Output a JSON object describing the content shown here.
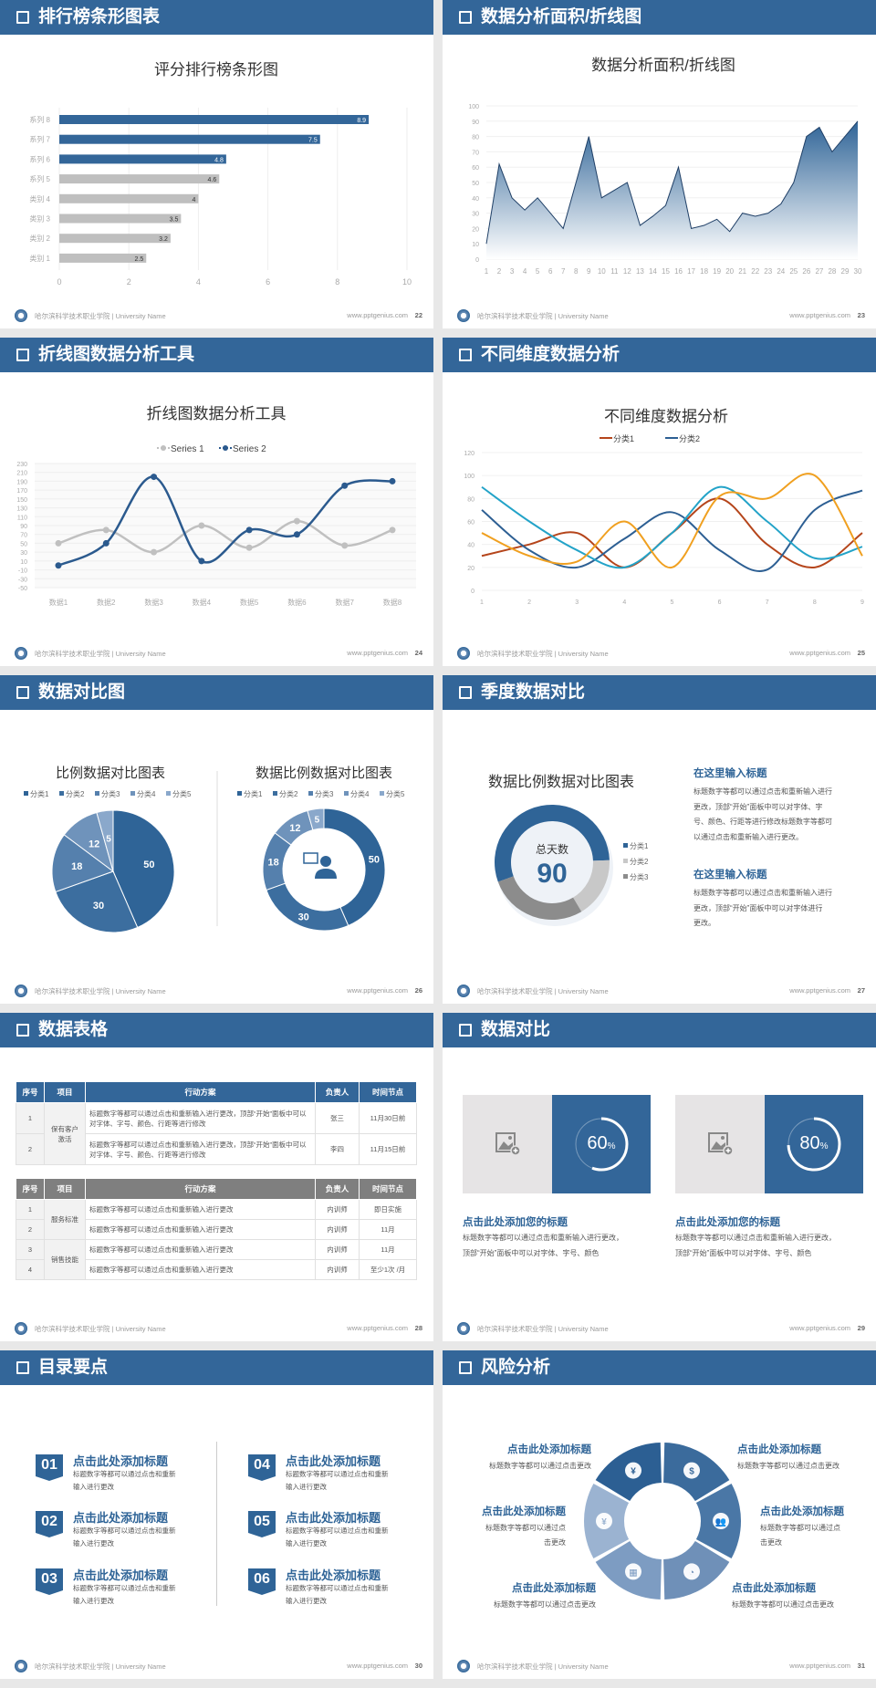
{
  "footer": {
    "school": "哈尔滨科学技术职业学院 | University Name",
    "url": "www.pptgenius.com",
    "separator": "|"
  },
  "colors": {
    "primary": "#336699",
    "bar_gray": "#bfbfbf",
    "series_gray": "#c0c0c0",
    "series_blue": "#2b5a8e",
    "cat1": "#b5451b",
    "cat2": "#2d5f93",
    "cat3": "#23a3c8",
    "cat4": "#f0a020",
    "pie": [
      "#2f6497",
      "#3c6e9f",
      "#5580ad",
      "#6f93bb",
      "#8aa8cb"
    ],
    "donut3": [
      "#2f6497",
      "#c8c8c8",
      "#8c8c8c"
    ]
  },
  "slides": {
    "bar": {
      "header": "排行榜条形图表",
      "page": "22"
    },
    "area": {
      "header": "数据分析面积/折线图",
      "page": "23"
    },
    "line": {
      "header": "折线图数据分析工具",
      "page": "24"
    },
    "dims": {
      "header": "不同维度数据分析",
      "page": "25"
    },
    "pies": {
      "header": "数据对比图",
      "page": "26"
    },
    "season": {
      "header": "季度数据对比",
      "page": "27",
      "blocks": [
        {
          "title": "在这里输入标题",
          "lines": [
            "标题数字等都可以通过点击和重新输入进行",
            "更改，顶部“开始”面板中可以对字体、字",
            "号、颜色、行距等进行修改标题数字等都可",
            "以通过点击和重新输入进行更改。"
          ]
        },
        {
          "title": "在这里输入标题",
          "lines": [
            "标题数字等都可以通过点击和重新输入进行",
            "更改，顶部“开始”面板中可以对字体进行",
            "更改。"
          ]
        }
      ]
    },
    "table": {
      "header": "数据表格",
      "page": "28",
      "columns": [
        "序号",
        "项目",
        "行动方案",
        "负责人",
        "时间节点"
      ],
      "table1": {
        "group": "保有客户激活",
        "rows": [
          {
            "no": "1",
            "plan": "标题数字等都可以通过点击和重新输入进行更改，顶部“开始”面板中可以对字体、字号、颜色、行距等进行修改",
            "owner": "张三",
            "time": "11月30日前"
          },
          {
            "no": "2",
            "plan": "标题数字等都可以通过点击和重新输入进行更改，顶部“开始”面板中可以对字体、字号、颜色、行距等进行修改",
            "owner": "李四",
            "time": "11月15日前"
          }
        ]
      },
      "table2": {
        "groups": [
          "服务标准",
          "销售技能"
        ],
        "rows": [
          {
            "no": "1",
            "plan": "标题数字等都可以通过点击和重新输入进行更改",
            "owner": "内训师",
            "time": "即日实施"
          },
          {
            "no": "2",
            "plan": "标题数字等都可以通过点击和重新输入进行更改",
            "owner": "内训师",
            "time": "11月"
          },
          {
            "no": "3",
            "plan": "标题数字等都可以通过点击和重新输入进行更改",
            "owner": "内训师",
            "time": "11月"
          },
          {
            "no": "4",
            "plan": "标题数字等都可以通过点击和重新输入进行更改",
            "owner": "内训师",
            "time": "至少1次 /月"
          }
        ]
      }
    },
    "compare": {
      "header": "数据对比",
      "page": "29",
      "cards": [
        {
          "percent": 60,
          "label": "60",
          "unit": "%",
          "title": "点击此处添加您的标题",
          "lines": [
            "标题数字等都可以通过点击和重新输入进行更改，",
            "顶部“开始”面板中可以对字体、字号、颜色"
          ]
        },
        {
          "percent": 80,
          "label": "80",
          "unit": "%",
          "title": "点击此处添加您的标题",
          "lines": [
            "标题数字等都可以通过点击和重新输入进行更改，",
            "顶部“开始”面板中可以对字体、字号、颜色"
          ]
        }
      ]
    },
    "toc": {
      "header": "目录要点",
      "page": "30",
      "items": [
        {
          "num": "01",
          "title": "点击此处添加标题",
          "lines": [
            "标题数字等都可以通过点击和重新",
            "输入进行更改"
          ]
        },
        {
          "num": "02",
          "title": "点击此处添加标题",
          "lines": [
            "标题数字等都可以通过点击和重新",
            "输入进行更改"
          ]
        },
        {
          "num": "03",
          "title": "点击此处添加标题",
          "lines": [
            "标题数字等都可以通过点击和重新",
            "输入进行更改"
          ]
        },
        {
          "num": "04",
          "title": "点击此处添加标题",
          "lines": [
            "标题数字等都可以通过点击和重新",
            "输入进行更改"
          ]
        },
        {
          "num": "05",
          "title": "点击此处添加标题",
          "lines": [
            "标题数字等都可以通过点击和重新",
            "输入进行更改"
          ]
        },
        {
          "num": "06",
          "title": "点击此处添加标题",
          "lines": [
            "标题数字等都可以通过点击和重新",
            "输入进行更改"
          ]
        }
      ]
    },
    "risk": {
      "header": "风险分析",
      "page": "31",
      "icons": [
        "money-bag-icon",
        "coins-icon",
        "people-icon",
        "pie-chart-icon",
        "building-icon",
        "hand-yen-icon"
      ],
      "items": [
        {
          "title": "点击此处添加标题",
          "lines": [
            "标题数字等都可以通过点击更改"
          ]
        },
        {
          "title": "点击此处添加标题",
          "lines": [
            "标题数字等都可以通过点击更改"
          ]
        },
        {
          "title": "点击此处添加标题",
          "lines": [
            "标题数字等都可以通过点",
            "击更改"
          ]
        },
        {
          "title": "点击此处添加标题",
          "lines": [
            "标题数字等都可以通过点",
            "击更改"
          ]
        },
        {
          "title": "点击此处添加标题",
          "lines": [
            "标题数字等都可以通过点击更改"
          ]
        },
        {
          "title": "点击此处添加标题",
          "lines": [
            "标题数字等都可以通过点击更改"
          ]
        }
      ]
    }
  },
  "chart_data": [
    {
      "type": "bar",
      "orientation": "horizontal",
      "title": "评分排行榜条形图",
      "categories": [
        "系列 8",
        "系列 7",
        "系列 6",
        "系列 5",
        "类别 4",
        "类别 3",
        "类别 2",
        "类别 1"
      ],
      "values": [
        8.9,
        7.5,
        4.8,
        4.6,
        4,
        3.5,
        3.2,
        2.5
      ],
      "highlighted": 3,
      "xlim": [
        0,
        10
      ],
      "xticks": [
        0,
        2,
        4,
        6,
        8,
        10
      ],
      "grid": true,
      "data_labels": true
    },
    {
      "type": "area",
      "title": "数据分析面积/折线图",
      "x": [
        1,
        2,
        3,
        4,
        5,
        6,
        7,
        8,
        9,
        10,
        11,
        12,
        13,
        14,
        15,
        16,
        17,
        18,
        19,
        20,
        21,
        22,
        23,
        24,
        25,
        26,
        27,
        28,
        29,
        30
      ],
      "values": [
        10,
        62,
        40,
        32,
        40,
        30,
        20,
        50,
        80,
        40,
        45,
        50,
        22,
        28,
        35,
        60,
        20,
        22,
        26,
        18,
        30,
        28,
        30,
        36,
        50,
        80,
        86,
        70,
        80,
        90
      ],
      "ylim": [
        0,
        100
      ],
      "yticks": [
        0,
        10,
        20,
        30,
        40,
        50,
        60,
        70,
        80,
        90,
        100
      ],
      "grid": true
    },
    {
      "type": "line",
      "title": "折线图数据分析工具",
      "smooth": true,
      "legend": "top",
      "categories": [
        "数据1",
        "数据2",
        "数据3",
        "数据4",
        "数据5",
        "数据6",
        "数据7",
        "数据8"
      ],
      "series": [
        {
          "name": "Series 1",
          "values": [
            50,
            80,
            30,
            90,
            40,
            100,
            45,
            80
          ]
        },
        {
          "name": "Series 2",
          "values": [
            0,
            50,
            200,
            10,
            80,
            70,
            180,
            190
          ]
        }
      ],
      "ylim": [
        -50,
        230
      ],
      "yticks": [
        -50,
        -30,
        -10,
        10,
        30,
        50,
        70,
        90,
        110,
        130,
        150,
        170,
        190,
        210,
        230
      ],
      "grid": true
    },
    {
      "type": "line",
      "title": "不同维度数据分析",
      "smooth": true,
      "legend": "top",
      "x": [
        1,
        2,
        3,
        4,
        5,
        6,
        7,
        8,
        9
      ],
      "series": [
        {
          "name": "分类1",
          "values": [
            30,
            40,
            50,
            20,
            50,
            80,
            40,
            20,
            50
          ]
        },
        {
          "name": "分类2",
          "values": [
            70,
            35,
            20,
            45,
            68,
            35,
            18,
            70,
            87
          ]
        },
        {
          "values": [
            90,
            60,
            35,
            20,
            50,
            90,
            60,
            28,
            38
          ]
        },
        {
          "values": [
            50,
            30,
            25,
            60,
            20,
            82,
            80,
            100,
            30
          ]
        }
      ],
      "ylim": [
        0,
        120
      ],
      "yticks": [
        0,
        20,
        40,
        60,
        80,
        100,
        120
      ],
      "grid": true
    },
    {
      "type": "pie",
      "title": "比例数据对比图表",
      "legend": "top",
      "categories": [
        "分类1",
        "分类2",
        "分类3",
        "分类4",
        "分类5"
      ],
      "values": [
        50,
        30,
        18,
        12,
        5
      ]
    },
    {
      "type": "pie",
      "variant": "donut",
      "title": "数据比例数据对比图表",
      "legend": "top",
      "categories": [
        "分类1",
        "分类2",
        "分类3",
        "分类4",
        "分类5"
      ],
      "values": [
        50,
        30,
        18,
        12,
        5
      ]
    },
    {
      "type": "pie",
      "variant": "donut",
      "title": "数据比例数据对比图表",
      "legend": "right",
      "categories": [
        "分类1",
        "分类2",
        "分类3"
      ],
      "values": [
        55,
        17,
        28
      ],
      "center_label": "总天数",
      "center_value": "90"
    }
  ]
}
